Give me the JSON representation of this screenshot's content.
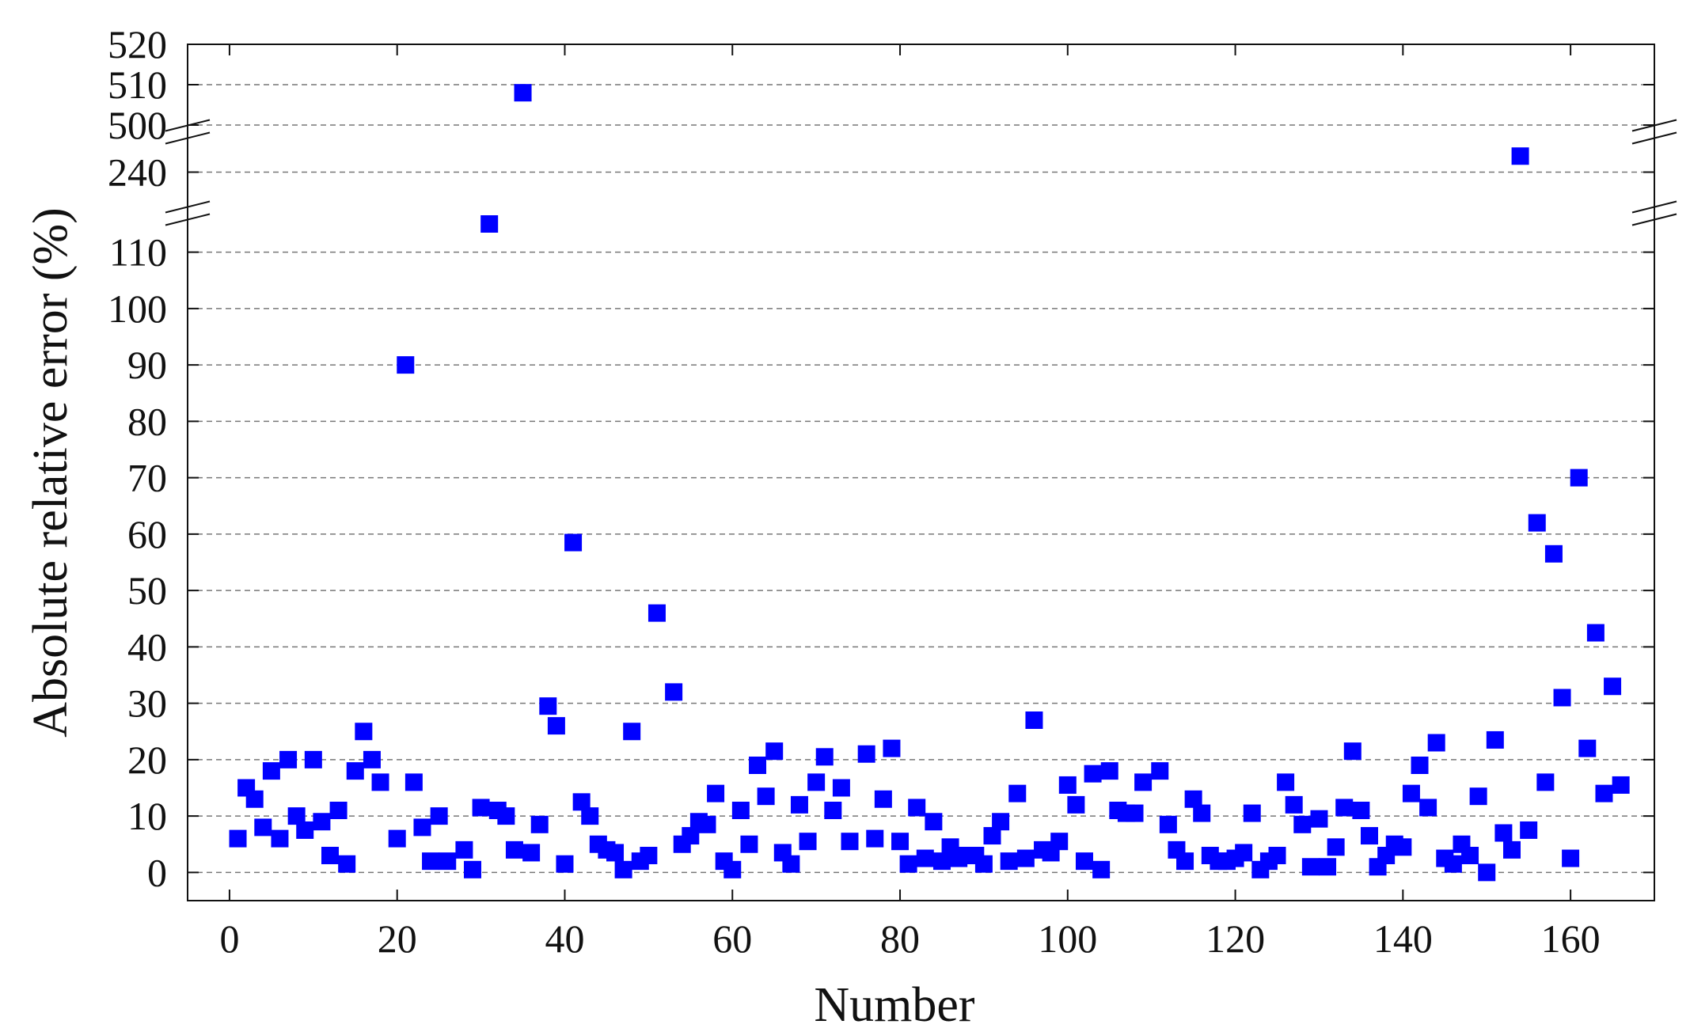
{
  "chart_data": {
    "type": "scatter",
    "xlabel": "Number",
    "ylabel": "Absolute relative error (%)",
    "xlim": [
      -5,
      170
    ],
    "xticks": [
      0,
      20,
      40,
      60,
      80,
      100,
      120,
      140,
      160
    ],
    "y_axis_broken": true,
    "y_segments": [
      {
        "range": [
          -5,
          115
        ],
        "ticks": [
          0,
          10,
          20,
          30,
          40,
          50,
          60,
          70,
          80,
          90,
          100,
          110
        ]
      },
      {
        "range": [
          236,
          244
        ],
        "ticks": [
          240
        ]
      },
      {
        "range": [
          500,
          520
        ],
        "ticks": [
          500,
          510,
          520
        ]
      }
    ],
    "grid": "dashed horizontal at y ticks",
    "marker": "square",
    "marker_color": "#0000ff",
    "series": [
      {
        "points": [
          [
            1,
            6
          ],
          [
            2,
            15
          ],
          [
            3,
            13
          ],
          [
            4,
            8
          ],
          [
            5,
            18
          ],
          [
            6,
            6
          ],
          [
            7,
            20
          ],
          [
            8,
            10
          ],
          [
            9,
            7.5
          ],
          [
            10,
            20
          ],
          [
            11,
            9
          ],
          [
            12,
            3
          ],
          [
            13,
            11
          ],
          [
            14,
            1.5
          ],
          [
            15,
            18
          ],
          [
            16,
            25
          ],
          [
            17,
            20
          ],
          [
            18,
            16
          ],
          [
            20,
            6
          ],
          [
            21,
            90
          ],
          [
            22,
            16
          ],
          [
            23,
            8
          ],
          [
            24,
            2
          ],
          [
            25,
            10
          ],
          [
            26,
            2
          ],
          [
            28,
            4
          ],
          [
            29,
            0.5
          ],
          [
            30,
            11.5
          ],
          [
            31,
            115
          ],
          [
            32,
            11
          ],
          [
            33,
            10
          ],
          [
            34,
            4
          ],
          [
            35,
            508
          ],
          [
            36,
            3.5
          ],
          [
            37,
            8.5
          ],
          [
            38,
            29.5
          ],
          [
            39,
            26
          ],
          [
            40,
            1.5
          ],
          [
            41,
            58.5
          ],
          [
            42,
            12.5
          ],
          [
            43,
            10
          ],
          [
            44,
            5
          ],
          [
            45,
            4
          ],
          [
            46,
            3.5
          ],
          [
            47,
            0.5
          ],
          [
            48,
            25
          ],
          [
            49,
            2
          ],
          [
            50,
            3
          ],
          [
            51,
            46
          ],
          [
            53,
            32
          ],
          [
            54,
            5
          ],
          [
            55,
            6.5
          ],
          [
            56,
            9
          ],
          [
            57,
            8.5
          ],
          [
            58,
            14
          ],
          [
            59,
            2
          ],
          [
            60,
            0.5
          ],
          [
            61,
            11
          ],
          [
            62,
            5
          ],
          [
            63,
            19
          ],
          [
            64,
            13.5
          ],
          [
            65,
            21.5
          ],
          [
            66,
            3.5
          ],
          [
            67,
            1.5
          ],
          [
            68,
            12
          ],
          [
            69,
            5.5
          ],
          [
            70,
            16
          ],
          [
            71,
            20.5
          ],
          [
            72,
            11
          ],
          [
            73,
            15
          ],
          [
            74,
            5.5
          ],
          [
            76,
            21
          ],
          [
            77,
            6
          ],
          [
            78,
            13
          ],
          [
            79,
            22
          ],
          [
            80,
            5.5
          ],
          [
            81,
            1.5
          ],
          [
            82,
            11.5
          ],
          [
            83,
            2.5
          ],
          [
            84,
            9
          ],
          [
            85,
            2
          ],
          [
            86,
            4.5
          ],
          [
            87,
            2.5
          ],
          [
            88,
            3
          ],
          [
            89,
            3
          ],
          [
            90,
            1.5
          ],
          [
            91,
            6.5
          ],
          [
            92,
            9
          ],
          [
            93,
            2
          ],
          [
            94,
            14
          ],
          [
            95,
            2.5
          ],
          [
            96,
            27
          ],
          [
            97,
            4
          ],
          [
            98,
            3.5
          ],
          [
            99,
            5.5
          ],
          [
            100,
            15.5
          ],
          [
            101,
            12
          ],
          [
            102,
            2
          ],
          [
            103,
            17.5
          ],
          [
            104,
            0.5
          ],
          [
            105,
            18
          ],
          [
            106,
            11
          ],
          [
            107,
            10.5
          ],
          [
            108,
            10.5
          ],
          [
            109,
            16
          ],
          [
            111,
            18
          ],
          [
            112,
            8.5
          ],
          [
            113,
            4
          ],
          [
            114,
            2
          ],
          [
            115,
            13
          ],
          [
            116,
            10.5
          ],
          [
            117,
            3
          ],
          [
            118,
            2
          ],
          [
            119,
            2
          ],
          [
            120,
            2.5
          ],
          [
            121,
            3.5
          ],
          [
            122,
            10.5
          ],
          [
            123,
            0.5
          ],
          [
            124,
            2
          ],
          [
            125,
            3
          ],
          [
            126,
            16
          ],
          [
            127,
            12
          ],
          [
            128,
            8.5
          ],
          [
            129,
            1
          ],
          [
            130,
            9.5
          ],
          [
            131,
            1
          ],
          [
            132,
            4.5
          ],
          [
            133,
            11.5
          ],
          [
            134,
            21.5
          ],
          [
            135,
            11
          ],
          [
            136,
            6.5
          ],
          [
            137,
            1
          ],
          [
            138,
            3
          ],
          [
            139,
            5
          ],
          [
            140,
            4.5
          ],
          [
            141,
            14
          ],
          [
            142,
            19
          ],
          [
            143,
            11.5
          ],
          [
            144,
            23
          ],
          [
            145,
            2.5
          ],
          [
            146,
            1.5
          ],
          [
            147,
            5
          ],
          [
            148,
            3
          ],
          [
            149,
            13.5
          ],
          [
            150,
            0
          ],
          [
            151,
            23.5
          ],
          [
            152,
            7
          ],
          [
            153,
            4
          ],
          [
            154,
            242
          ],
          [
            155,
            7.5
          ],
          [
            156,
            62
          ],
          [
            157,
            16
          ],
          [
            158,
            56.5
          ],
          [
            159,
            31
          ],
          [
            160,
            2.5
          ],
          [
            161,
            70
          ],
          [
            162,
            22
          ],
          [
            163,
            42.5
          ],
          [
            164,
            14
          ],
          [
            165,
            33
          ],
          [
            166,
            15.5
          ]
        ]
      }
    ]
  }
}
